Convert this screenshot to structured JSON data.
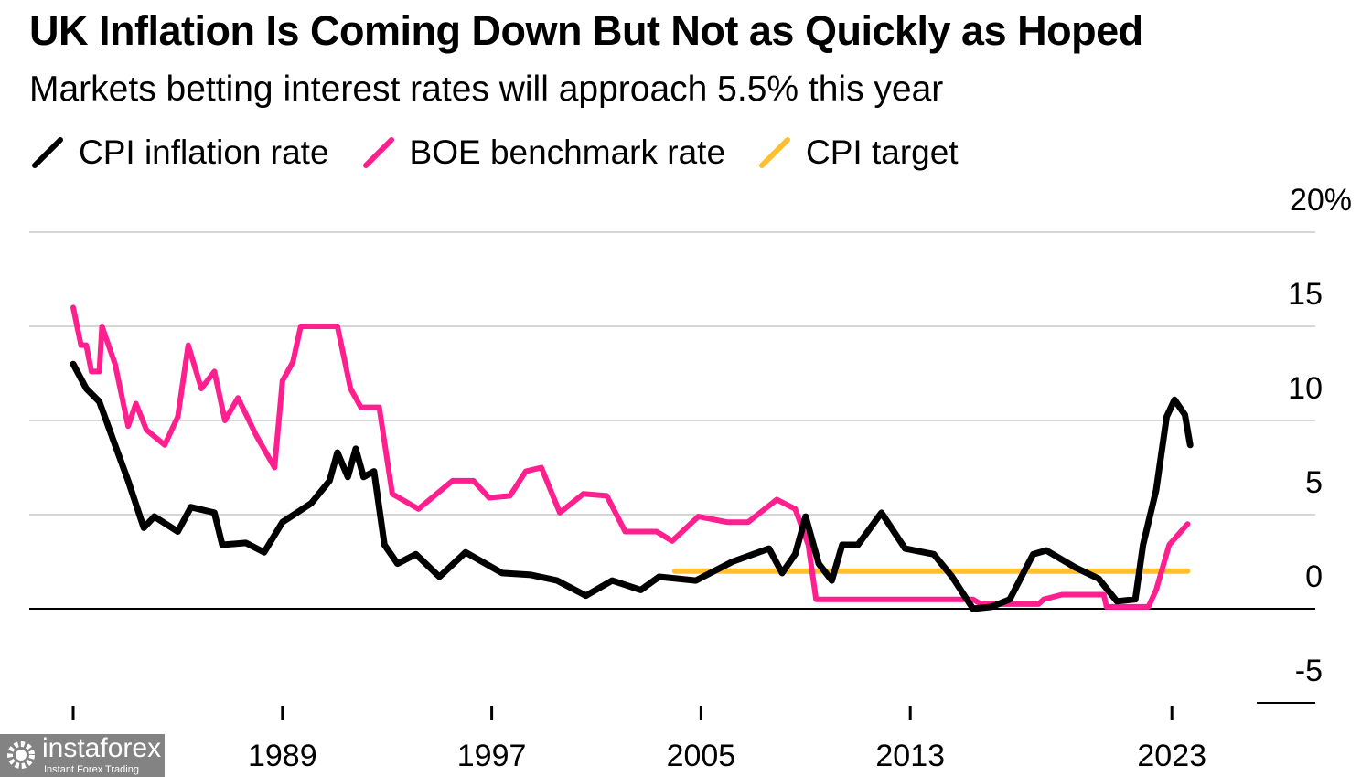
{
  "chart_data": {
    "type": "line",
    "title": "UK Inflation Is Coming Down But Not as Quickly as Hoped",
    "subtitle": "Markets betting interest rates will approach 5.5% this year",
    "xlim": [
      1981,
      2023.7
    ],
    "ylim": [
      -5,
      20
    ],
    "y_ticks": [
      {
        "value": 20,
        "label": "20%"
      },
      {
        "value": 15,
        "label": "15"
      },
      {
        "value": 10,
        "label": "10"
      },
      {
        "value": 5,
        "label": "5"
      },
      {
        "value": 0,
        "label": "0"
      },
      {
        "value": -5,
        "label": "-5"
      }
    ],
    "x_ticks": [
      {
        "value": 1981,
        "label": ""
      },
      {
        "value": 1989,
        "label": "1989"
      },
      {
        "value": 1997,
        "label": "1997"
      },
      {
        "value": 2005,
        "label": "2005"
      },
      {
        "value": 2013,
        "label": "2013"
      },
      {
        "value": 2023,
        "label": "2023"
      }
    ],
    "grid": true,
    "legend_placement": "top-left",
    "series": [
      {
        "name": "CPI inflation rate",
        "color": "#000000",
        "points": [
          [
            1981.0,
            13.0
          ],
          [
            1981.5,
            11.7
          ],
          [
            1982.0,
            11.0
          ],
          [
            1982.6,
            8.7
          ],
          [
            1983.1,
            6.8
          ],
          [
            1983.7,
            4.3
          ],
          [
            1984.1,
            4.9
          ],
          [
            1985.0,
            4.1
          ],
          [
            1985.5,
            5.4
          ],
          [
            1986.4,
            5.1
          ],
          [
            1986.7,
            3.4
          ],
          [
            1987.6,
            3.5
          ],
          [
            1988.3,
            3.0
          ],
          [
            1989.0,
            4.6
          ],
          [
            1990.1,
            5.6
          ],
          [
            1990.8,
            6.8
          ],
          [
            1991.1,
            8.3
          ],
          [
            1991.5,
            7.0
          ],
          [
            1991.8,
            8.5
          ],
          [
            1992.1,
            7.0
          ],
          [
            1992.5,
            7.3
          ],
          [
            1992.9,
            3.4
          ],
          [
            1993.4,
            2.4
          ],
          [
            1994.1,
            2.9
          ],
          [
            1995.0,
            1.7
          ],
          [
            1996.0,
            3.0
          ],
          [
            1997.4,
            1.9
          ],
          [
            1998.5,
            1.8
          ],
          [
            1999.5,
            1.5
          ],
          [
            2000.6,
            0.7
          ],
          [
            2001.6,
            1.5
          ],
          [
            2002.7,
            1.0
          ],
          [
            2003.4,
            1.7
          ],
          [
            2004.8,
            1.5
          ],
          [
            2006.2,
            2.5
          ],
          [
            2007.6,
            3.2
          ],
          [
            2008.1,
            1.9
          ],
          [
            2008.6,
            2.9
          ],
          [
            2009.0,
            4.9
          ],
          [
            2009.5,
            2.4
          ],
          [
            2010.0,
            1.5
          ],
          [
            2010.4,
            3.4
          ],
          [
            2011.0,
            3.4
          ],
          [
            2011.9,
            5.1
          ],
          [
            2012.8,
            3.2
          ],
          [
            2013.9,
            2.9
          ],
          [
            2014.6,
            1.7
          ],
          [
            2015.4,
            0.0
          ],
          [
            2016.1,
            0.1
          ],
          [
            2016.8,
            0.5
          ],
          [
            2017.7,
            2.9
          ],
          [
            2018.2,
            3.1
          ],
          [
            2019.3,
            2.2
          ],
          [
            2020.2,
            1.6
          ],
          [
            2020.9,
            0.4
          ],
          [
            2021.6,
            0.5
          ],
          [
            2021.9,
            3.4
          ],
          [
            2022.4,
            6.3
          ],
          [
            2022.8,
            10.2
          ],
          [
            2023.1,
            11.1
          ],
          [
            2023.5,
            10.3
          ],
          [
            2023.7,
            8.7
          ]
        ]
      },
      {
        "name": "BOE benchmark rate",
        "color": "#ff1f8e",
        "points": [
          [
            1981.0,
            16.0
          ],
          [
            1981.3,
            14.0
          ],
          [
            1981.5,
            14.0
          ],
          [
            1981.7,
            12.6
          ],
          [
            1982.0,
            12.6
          ],
          [
            1982.1,
            15.0
          ],
          [
            1982.6,
            13.0
          ],
          [
            1983.1,
            9.7
          ],
          [
            1983.4,
            10.9
          ],
          [
            1983.8,
            9.5
          ],
          [
            1984.5,
            8.7
          ],
          [
            1985.0,
            10.2
          ],
          [
            1985.4,
            14.0
          ],
          [
            1985.9,
            11.7
          ],
          [
            1986.4,
            12.6
          ],
          [
            1986.8,
            10.0
          ],
          [
            1987.3,
            11.2
          ],
          [
            1988.0,
            9.2
          ],
          [
            1988.7,
            7.5
          ],
          [
            1989.0,
            12.1
          ],
          [
            1989.4,
            13.1
          ],
          [
            1989.7,
            15.0
          ],
          [
            1991.1,
            15.0
          ],
          [
            1991.6,
            11.7
          ],
          [
            1992.0,
            10.7
          ],
          [
            1992.7,
            10.7
          ],
          [
            1993.2,
            6.1
          ],
          [
            1994.2,
            5.3
          ],
          [
            1995.5,
            6.8
          ],
          [
            1996.3,
            6.8
          ],
          [
            1996.9,
            5.9
          ],
          [
            1997.7,
            6.0
          ],
          [
            1998.3,
            7.3
          ],
          [
            1998.9,
            7.5
          ],
          [
            1999.6,
            5.1
          ],
          [
            2000.5,
            6.1
          ],
          [
            2001.4,
            6.0
          ],
          [
            2002.1,
            4.1
          ],
          [
            2003.3,
            4.1
          ],
          [
            2003.9,
            3.6
          ],
          [
            2004.9,
            4.9
          ],
          [
            2006.0,
            4.6
          ],
          [
            2006.8,
            4.6
          ],
          [
            2007.9,
            5.8
          ],
          [
            2008.6,
            5.3
          ],
          [
            2009.1,
            3.4
          ],
          [
            2009.4,
            0.5
          ],
          [
            2015.4,
            0.5
          ],
          [
            2015.7,
            0.25
          ],
          [
            2017.9,
            0.25
          ],
          [
            2018.1,
            0.5
          ],
          [
            2018.8,
            0.75
          ],
          [
            2020.4,
            0.75
          ],
          [
            2020.5,
            0.1
          ],
          [
            2022.1,
            0.1
          ],
          [
            2022.4,
            1.0
          ],
          [
            2022.9,
            3.4
          ],
          [
            2023.6,
            4.5
          ]
        ]
      },
      {
        "name": "CPI target",
        "color": "#ffc02e",
        "points": [
          [
            2004.0,
            2.0
          ],
          [
            2023.6,
            2.0
          ]
        ]
      }
    ]
  },
  "watermark": {
    "brand": "instaforex",
    "tagline": "Instant Forex Trading"
  }
}
